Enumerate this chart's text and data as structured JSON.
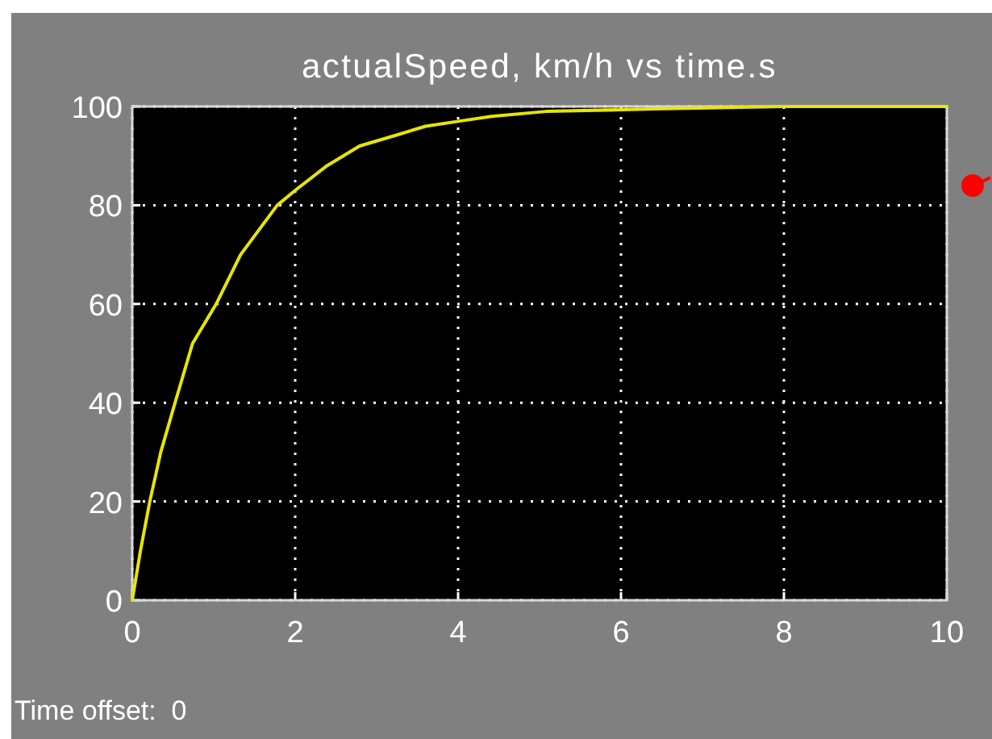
{
  "chart_data": {
    "type": "line",
    "title": "actualSpeed, km/h vs time.s",
    "x": [
      0,
      0.1,
      0.215,
      0.35,
      0.525,
      0.74,
      1.03,
      1.33,
      1.78,
      2.0,
      2.39,
      2.79,
      3.2,
      3.6,
      4.0,
      4.41,
      5.08,
      6.4,
      8,
      10
    ],
    "series": [
      {
        "color": "#e6e600",
        "values": [
          0,
          10,
          20,
          30,
          40,
          52,
          60,
          70,
          80,
          83,
          88,
          92,
          94,
          96,
          97,
          98,
          99,
          99.5,
          100,
          100
        ]
      }
    ],
    "xlim": [
      0,
      10
    ],
    "ylim": [
      0,
      100
    ],
    "xticks": [
      0,
      2,
      4,
      6,
      8,
      10
    ],
    "yticks": [
      0,
      20,
      40,
      60,
      80,
      100
    ],
    "grid": true,
    "annotations": [
      "Time offset:  0"
    ]
  }
}
